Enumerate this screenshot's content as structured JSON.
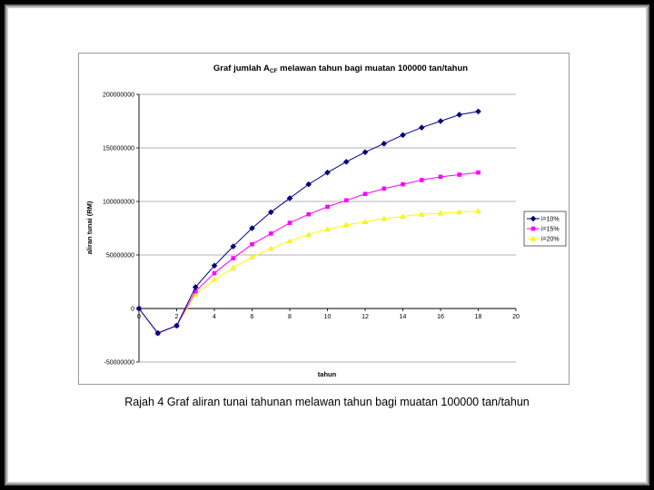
{
  "chart_data": {
    "type": "line",
    "title_prefix": "Graf jumlah A",
    "title_subscript": "CF",
    "title_suffix": " melawan tahun bagi muatan 100000 tan/tahun",
    "xlabel": "tahun",
    "ylabel": "aliran tunai (RM)",
    "xlim": [
      0,
      20
    ],
    "ylim": [
      -50000000,
      200000000
    ],
    "x_ticks": [
      0,
      2,
      4,
      6,
      8,
      10,
      12,
      14,
      16,
      18,
      20
    ],
    "y_ticks": [
      {
        "value": 200000000,
        "label": "200000000"
      },
      {
        "value": 150000000,
        "label": "150000000"
      },
      {
        "value": 100000000,
        "label": "100000000"
      },
      {
        "value": 50000000,
        "label": "50000000"
      },
      {
        "value": 0,
        "label": "0"
      },
      {
        "value": -50000000,
        "label": "-50000000"
      }
    ],
    "grid": "horizontal",
    "legend_position": "right",
    "x": [
      0,
      1,
      2,
      3,
      4,
      5,
      6,
      7,
      8,
      9,
      10,
      11,
      12,
      13,
      14,
      15,
      16,
      17,
      18
    ],
    "series": [
      {
        "name": "i=10%",
        "color": "#000080",
        "marker": "diamond",
        "values": [
          0,
          -23000000,
          -16000000,
          20000000,
          40000000,
          58000000,
          75000000,
          90000000,
          103000000,
          116000000,
          127000000,
          137000000,
          146000000,
          154000000,
          162000000,
          169000000,
          175000000,
          181000000,
          184000000
        ]
      },
      {
        "name": "i=15%",
        "color": "#ff00ff",
        "marker": "square",
        "values": [
          0,
          -23000000,
          -16000000,
          16000000,
          33000000,
          47000000,
          60000000,
          70000000,
          80000000,
          88000000,
          95000000,
          101000000,
          107000000,
          112000000,
          116000000,
          120000000,
          123000000,
          125000000,
          127000000
        ]
      },
      {
        "name": "i=20%",
        "color": "#ffff00",
        "marker": "triangle",
        "values": [
          0,
          -23000000,
          -16000000,
          13000000,
          27000000,
          38000000,
          48000000,
          56000000,
          63000000,
          69000000,
          74000000,
          78000000,
          81000000,
          84000000,
          86000000,
          88000000,
          89000000,
          90000000,
          91000000
        ]
      }
    ]
  },
  "caption": "Rajah 4 Graf aliran tunai tahunan melawan tahun bagi muatan 100000 tan/tahun"
}
